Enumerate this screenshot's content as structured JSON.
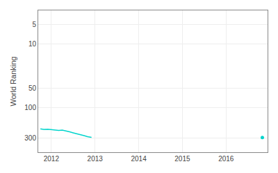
{
  "chart_data": {
    "type": "line",
    "ylabel": "World Ranking",
    "series": [
      {
        "x": [
          2011.75,
          2011.83,
          2011.92,
          2012.0,
          2012.08,
          2012.17,
          2012.25,
          2012.33,
          2012.42,
          2012.5,
          2012.58,
          2012.67,
          2012.75,
          2012.83,
          2012.92
        ],
        "values": [
          215,
          220,
          218,
          222,
          225,
          228,
          225,
          230,
          240,
          248,
          255,
          265,
          275,
          285,
          292
        ],
        "color": "#00d4cc"
      },
      {
        "x": [
          2016.83
        ],
        "values": [
          295
        ],
        "color": "#00d4cc",
        "marker": "circle"
      }
    ],
    "xlim": [
      2011.7,
      2016.95
    ],
    "xticks": [
      2012,
      2013,
      2014,
      2015,
      2016
    ],
    "ylim": [
      500,
      3
    ],
    "yticks": [
      5,
      10,
      50,
      100,
      300
    ],
    "log": "y",
    "grid": true
  }
}
